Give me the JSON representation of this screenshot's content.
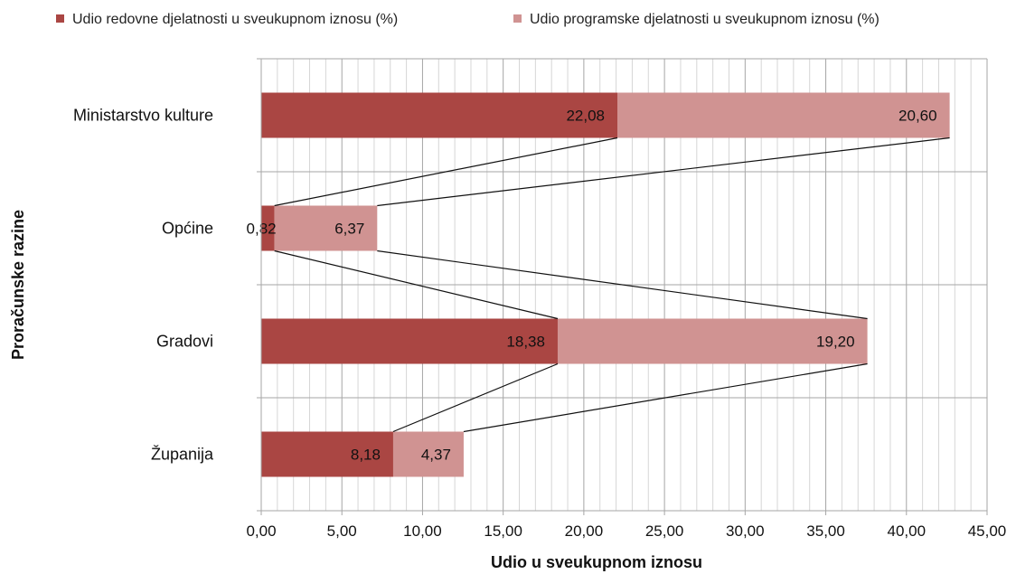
{
  "chart_data": {
    "type": "bar",
    "orientation": "horizontal",
    "stacked": true,
    "categories": [
      "Ministarstvo kulture",
      "Općine",
      "Gradovi",
      "Županija"
    ],
    "series": [
      {
        "name": "Udio redovne djelatnosti u sveukupnom iznosu  (%)",
        "values": [
          22.08,
          0.82,
          18.38,
          8.18
        ],
        "color": "#aa4643"
      },
      {
        "name": "Udio programske djelatnosti u sveukupnom iznosu (%)",
        "values": [
          20.6,
          6.37,
          19.2,
          4.37
        ],
        "color": "#d09392"
      }
    ],
    "data_labels": [
      [
        "22,08",
        "0,82",
        "18,38",
        "8,18"
      ],
      [
        "20,60",
        "6,37",
        "19,20",
        "4,37"
      ]
    ],
    "xlabel": "Udio u sveukupnom iznosu",
    "ylabel": "Proračunske razine",
    "xlim": [
      0,
      45
    ],
    "x_ticks": [
      0,
      5,
      10,
      15,
      20,
      25,
      30,
      35,
      40,
      45
    ],
    "x_tick_labels": [
      "0,00",
      "5,00",
      "10,00",
      "15,00",
      "20,00",
      "25,00",
      "30,00",
      "35,00",
      "40,00",
      "45,00"
    ],
    "series_lines": true,
    "grid": true,
    "legend_position": "top"
  }
}
